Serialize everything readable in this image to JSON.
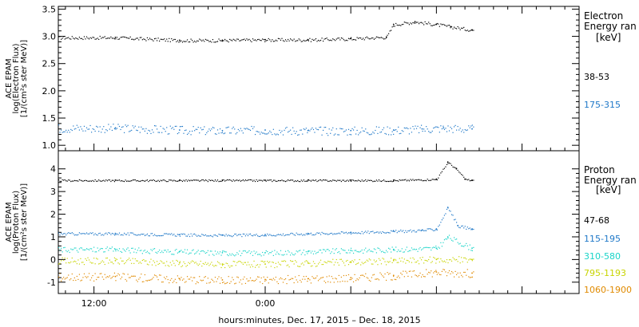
{
  "xlabel": "hours:minutes, Dec. 17, 2015 – Dec. 18, 2015",
  "x_ticks": [
    "12:00",
    "0:00"
  ],
  "chart_data": [
    {
      "type": "scatter",
      "panel": "top",
      "ylabel": [
        "ACE EPAM",
        "log(Electron Flux)",
        "[1/(cm²s ster MeV)]"
      ],
      "ylim": [
        0.9,
        3.55
      ],
      "yticks": [
        "1.0",
        "1.5",
        "2.0",
        "2.5",
        "3.0",
        "3.5"
      ],
      "ytick_values": [
        1.0,
        1.5,
        2.0,
        2.5,
        3.0,
        3.5
      ],
      "legend_title": [
        "Electron",
        "Energy ran",
        "[keV]"
      ],
      "series": [
        {
          "name": "38-53",
          "color": "#000000",
          "x": [
            -10.5,
            -6,
            -3,
            0,
            3,
            6,
            8.5,
            9,
            10.5,
            12,
            13,
            14.5
          ],
          "y": [
            2.98,
            2.93,
            2.93,
            2.94,
            2.94,
            2.96,
            2.99,
            3.22,
            3.27,
            3.22,
            3.18,
            3.12
          ]
        },
        {
          "name": "175-315",
          "color": "#1f78c8",
          "x": [
            -10.5,
            -6,
            -3,
            0,
            3,
            6,
            9,
            11,
            12.5,
            14.5
          ],
          "y": [
            1.32,
            1.28,
            1.27,
            1.28,
            1.27,
            1.27,
            1.28,
            1.3,
            1.32,
            1.3
          ]
        }
      ]
    },
    {
      "type": "scatter",
      "panel": "bottom",
      "ylabel": [
        "ACE EPAM",
        "log(Proton Flux)",
        "[1/(cm²s ster MeV)]"
      ],
      "ylim": [
        -1.5,
        4.8
      ],
      "yticks": [
        "-1",
        "0",
        "1",
        "2",
        "3",
        "4"
      ],
      "ytick_values": [
        -1,
        0,
        1,
        2,
        3,
        4
      ],
      "legend_title": [
        "Proton",
        "Energy ran",
        "[keV]"
      ],
      "series": [
        {
          "name": "47-68",
          "color": "#000000",
          "x": [
            -10.5,
            -6,
            -3,
            0,
            3,
            6,
            9,
            12,
            12.8,
            13.4,
            14,
            14.5
          ],
          "y": [
            3.5,
            3.5,
            3.5,
            3.5,
            3.5,
            3.5,
            3.5,
            3.55,
            4.3,
            4.0,
            3.55,
            3.5
          ]
        },
        {
          "name": "115-195",
          "color": "#1f78c8",
          "x": [
            -10.5,
            -6,
            -3,
            0,
            3,
            6,
            9,
            11,
            12,
            12.8,
            13.5,
            14.5
          ],
          "y": [
            1.15,
            1.1,
            1.08,
            1.1,
            1.15,
            1.2,
            1.25,
            1.3,
            1.35,
            2.3,
            1.5,
            1.35
          ]
        },
        {
          "name": "310-580",
          "color": "#1ad4c8",
          "x": [
            -10.5,
            -6,
            -3,
            0,
            3,
            6,
            9,
            12,
            12.8,
            14.5
          ],
          "y": [
            0.45,
            0.35,
            0.3,
            0.3,
            0.35,
            0.4,
            0.45,
            0.5,
            1.0,
            0.5
          ]
        },
        {
          "name": "795-1193",
          "color": "#c8d400",
          "x": [
            -10.5,
            -6,
            -3,
            0,
            3,
            6,
            9,
            12,
            14.5
          ],
          "y": [
            -0.05,
            -0.15,
            -0.2,
            -0.2,
            -0.15,
            -0.1,
            -0.05,
            0.0,
            0.0
          ]
        },
        {
          "name": "1060-1900",
          "color": "#e08a00",
          "x": [
            -10.5,
            -6,
            -3,
            0,
            3,
            6,
            9,
            12,
            14.5
          ],
          "y": [
            -0.75,
            -0.85,
            -0.9,
            -0.88,
            -0.85,
            -0.8,
            -0.7,
            -0.55,
            -0.6
          ]
        }
      ]
    }
  ]
}
